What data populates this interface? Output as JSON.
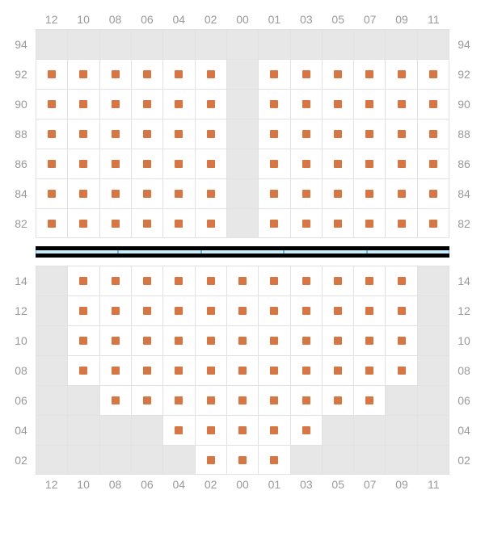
{
  "colors": {
    "seat_marker": "#d77642",
    "empty_cell": "#e7e7e7",
    "grid_border": "#e2e2e2",
    "label_text": "#999999",
    "divider_border": "#000000",
    "divider_fill": "#c9ecfb",
    "divider_seg_border": "#6ab7e6"
  },
  "top": {
    "cols": [
      "12",
      "10",
      "08",
      "06",
      "04",
      "02",
      "00",
      "01",
      "03",
      "05",
      "07",
      "09",
      "11"
    ],
    "row_labels": [
      "94",
      "92",
      "90",
      "88",
      "86",
      "84",
      "82"
    ],
    "grid": [
      [
        0,
        0,
        0,
        0,
        0,
        0,
        0,
        0,
        0,
        0,
        0,
        0,
        0
      ],
      [
        1,
        1,
        1,
        1,
        1,
        1,
        0,
        1,
        1,
        1,
        1,
        1,
        1
      ],
      [
        1,
        1,
        1,
        1,
        1,
        1,
        0,
        1,
        1,
        1,
        1,
        1,
        1
      ],
      [
        1,
        1,
        1,
        1,
        1,
        1,
        0,
        1,
        1,
        1,
        1,
        1,
        1
      ],
      [
        1,
        1,
        1,
        1,
        1,
        1,
        0,
        1,
        1,
        1,
        1,
        1,
        1
      ],
      [
        1,
        1,
        1,
        1,
        1,
        1,
        0,
        1,
        1,
        1,
        1,
        1,
        1
      ],
      [
        1,
        1,
        1,
        1,
        1,
        1,
        0,
        1,
        1,
        1,
        1,
        1,
        1
      ]
    ]
  },
  "divider": {
    "segments": 5
  },
  "bottom": {
    "cols": [
      "12",
      "10",
      "08",
      "06",
      "04",
      "02",
      "00",
      "01",
      "03",
      "05",
      "07",
      "09",
      "11"
    ],
    "row_labels": [
      "14",
      "12",
      "10",
      "08",
      "06",
      "04",
      "02"
    ],
    "grid": [
      [
        0,
        1,
        1,
        1,
        1,
        1,
        1,
        1,
        1,
        1,
        1,
        1,
        0
      ],
      [
        0,
        1,
        1,
        1,
        1,
        1,
        1,
        1,
        1,
        1,
        1,
        1,
        0
      ],
      [
        0,
        1,
        1,
        1,
        1,
        1,
        1,
        1,
        1,
        1,
        1,
        1,
        0
      ],
      [
        0,
        1,
        1,
        1,
        1,
        1,
        1,
        1,
        1,
        1,
        1,
        1,
        0
      ],
      [
        0,
        0,
        1,
        1,
        1,
        1,
        1,
        1,
        1,
        1,
        1,
        0,
        0
      ],
      [
        0,
        0,
        0,
        0,
        1,
        1,
        1,
        1,
        1,
        0,
        0,
        0,
        0
      ],
      [
        0,
        0,
        0,
        0,
        0,
        1,
        1,
        1,
        0,
        0,
        0,
        0,
        0
      ]
    ]
  }
}
